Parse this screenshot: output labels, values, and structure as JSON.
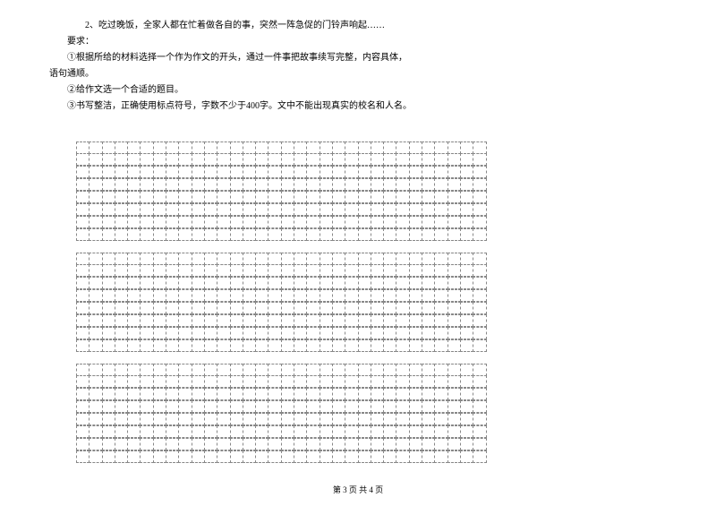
{
  "text": {
    "line1": "2、吃过晚饭，全家人都在忙着做各自的事，突然一阵急促的门铃声响起……",
    "line2": "要求：",
    "line3": "①根据所给的材料选择一个作为作文的开头，通过一件事把故事续写完整，内容具体，",
    "line4": "语句通顺。",
    "line5": "②给作文选一个合适的题目。",
    "line6": "③书写整洁，正确使用标点符号，字数不少于400字。文中不能出现真实的校名和人名。"
  },
  "grid": {
    "cols": 32,
    "blocks": [
      {
        "rows": 8
      },
      {
        "rows": 8
      },
      {
        "rows": 8
      }
    ],
    "cell_border_color": "#888888"
  },
  "footer": {
    "text": "第 3 页 共 4 页"
  },
  "colors": {
    "background": "#ffffff",
    "text": "#000000"
  }
}
